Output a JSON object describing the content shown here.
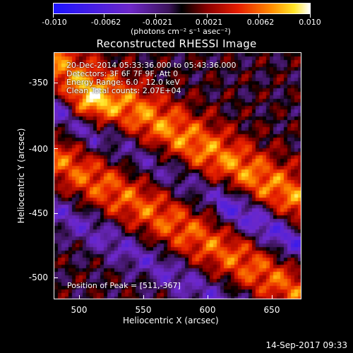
{
  "colorbar": {
    "tick_labels": [
      "-0.010",
      "-0.0062",
      "-0.0021",
      "0.0021",
      "0.0062",
      "0.010"
    ],
    "units": "(photons cm⁻² s⁻¹ asec⁻²)"
  },
  "title": "Reconstructed RHESSI Image",
  "info": {
    "time": "20-Dec-2014 05:33:36.000 to 05:43:36.000",
    "detectors": "Detectors: 3F 6F 7F 9F, Att 0",
    "energy": "Energy Range: 6.0 - 12.0 keV",
    "method": "Clean    Total counts: 2.07E+04"
  },
  "peak": "Position of Peak = [511,-367]",
  "axes": {
    "xlabel": "Heliocentric X (arcsec)",
    "ylabel": "Heliocentric Y (arcsec)",
    "x_ticks": [
      "500",
      "550",
      "600",
      "650"
    ],
    "y_ticks": [
      "-350",
      "-400",
      "-450",
      "-500"
    ]
  },
  "timestamp": "14-Sep-2017 09:33"
}
